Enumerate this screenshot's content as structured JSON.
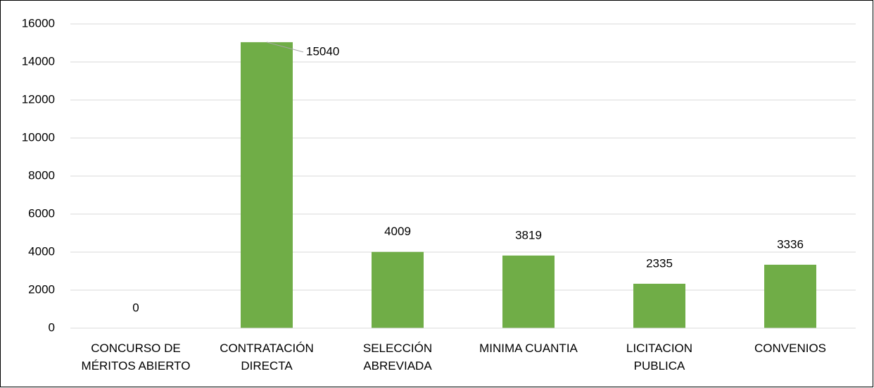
{
  "chart_data": {
    "type": "bar",
    "categories": [
      [
        "CONCURSO DE",
        "MÉRITOS ABIERTO"
      ],
      [
        "CONTRATACIÓN",
        "DIRECTA"
      ],
      [
        "SELECCIÓN",
        "ABREVIADA"
      ],
      [
        "MINIMA CUANTIA"
      ],
      [
        "LICITACION",
        "PUBLICA"
      ],
      [
        "CONVENIOS"
      ]
    ],
    "values": [
      0,
      15040,
      4009,
      3819,
      2335,
      3336
    ],
    "color": "#70ad47",
    "ylim": [
      0,
      16000
    ],
    "yticks": [
      0,
      2000,
      4000,
      6000,
      8000,
      10000,
      12000,
      14000,
      16000
    ],
    "grid": true
  }
}
